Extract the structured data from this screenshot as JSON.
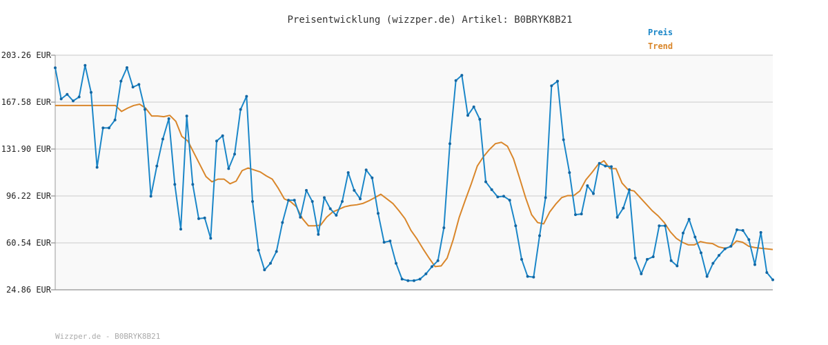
{
  "chart_data": {
    "type": "line",
    "title": "Preisentwicklung (wizzper.de) Artikel: B0BRYK8B21",
    "footer": "Wizzper.de - B0BRYK8B21",
    "ylim": [
      24.86,
      203.26
    ],
    "yticks": [
      "203.26 EUR",
      "167.58 EUR",
      "131.90 EUR",
      "96.22 EUR",
      "60.54 EUR",
      "24.86 EUR"
    ],
    "grid": true,
    "legend_placement": "top-right",
    "series": [
      {
        "name": "Preis",
        "color": "#1a86c8",
        "values": [
          193.7,
          170.0,
          173.5,
          168.5,
          171.5,
          195.5,
          175.0,
          118.0,
          148.0,
          148.0,
          154.0,
          183.5,
          193.8,
          179.0,
          181.0,
          162.0,
          96.0,
          119.0,
          139.5,
          155.0,
          105.0,
          71.0,
          157.0,
          105.0,
          79.0,
          79.5,
          64.0,
          138.0,
          142.0,
          117.0,
          128.0,
          162.0,
          172.0,
          92.0,
          55.0,
          40.0,
          45.0,
          54.0,
          76.0,
          93.0,
          93.0,
          80.0,
          100.5,
          92.0,
          67.0,
          95.0,
          86.5,
          81.5,
          92.0,
          114.0,
          100.5,
          94.0,
          116.0,
          110.0,
          83.0,
          61.0,
          62.0,
          45.0,
          33.0,
          31.8,
          31.8,
          33.0,
          37.0,
          42.5,
          47.0,
          72.0,
          136.0,
          184.0,
          188.0,
          157.5,
          164.0,
          154.5,
          107.0,
          101.0,
          95.5,
          96.0,
          93.0,
          73.5,
          48.0,
          35.0,
          34.5,
          66.0,
          95.0,
          180.0,
          183.5,
          139.0,
          114.0,
          82.0,
          82.5,
          104.0,
          98.0,
          121.0,
          119.0,
          118.5,
          80.0,
          87.0,
          101.0,
          49.0,
          37.0,
          48.0,
          50.0,
          73.5,
          73.5,
          47.0,
          43.0,
          68.0,
          78.5,
          65.0,
          53.0,
          35.0,
          45.0,
          51.0,
          56.0,
          58.0,
          70.5,
          70.0,
          63.0,
          44.0,
          68.5,
          38.0,
          32.5
        ]
      },
      {
        "name": "Trend",
        "color": "#d9862a",
        "values": [
          165.0,
          165.0,
          165.0,
          165.0,
          165.0,
          165.0,
          165.0,
          165.0,
          165.0,
          165.0,
          165.0,
          160.5,
          163.0,
          165.0,
          166.0,
          163.0,
          157.0,
          157.0,
          156.5,
          157.5,
          153.0,
          141.5,
          138.0,
          129.0,
          120.0,
          111.0,
          107.0,
          109.0,
          109.0,
          105.5,
          107.5,
          115.5,
          117.5,
          116.0,
          114.5,
          111.5,
          109.0,
          102.0,
          94.0,
          92.0,
          88.0,
          79.0,
          73.5,
          73.5,
          74.0,
          80.0,
          84.0,
          86.0,
          88.0,
          89.0,
          89.5,
          90.5,
          92.5,
          95.0,
          97.5,
          94.0,
          90.5,
          85.0,
          79.0,
          70.0,
          63.5,
          56.0,
          49.0,
          42.5,
          43.0,
          49.0,
          63.0,
          80.0,
          93.0,
          105.5,
          119.0,
          126.0,
          131.5,
          136.0,
          137.0,
          134.0,
          124.5,
          110.0,
          95.0,
          82.0,
          76.0,
          75.0,
          84.0,
          90.0,
          95.0,
          96.5,
          96.5,
          100.0,
          108.5,
          114.0,
          120.0,
          123.0,
          117.0,
          117.0,
          106.0,
          101.0,
          100.0,
          95.0,
          90.0,
          85.0,
          81.0,
          76.0,
          69.0,
          64.0,
          61.0,
          59.0,
          59.0,
          61.5,
          60.5,
          60.0,
          57.5,
          56.5,
          57.5,
          62.0,
          61.0,
          58.0,
          57.0,
          56.5,
          56.0,
          55.5
        ]
      }
    ]
  }
}
